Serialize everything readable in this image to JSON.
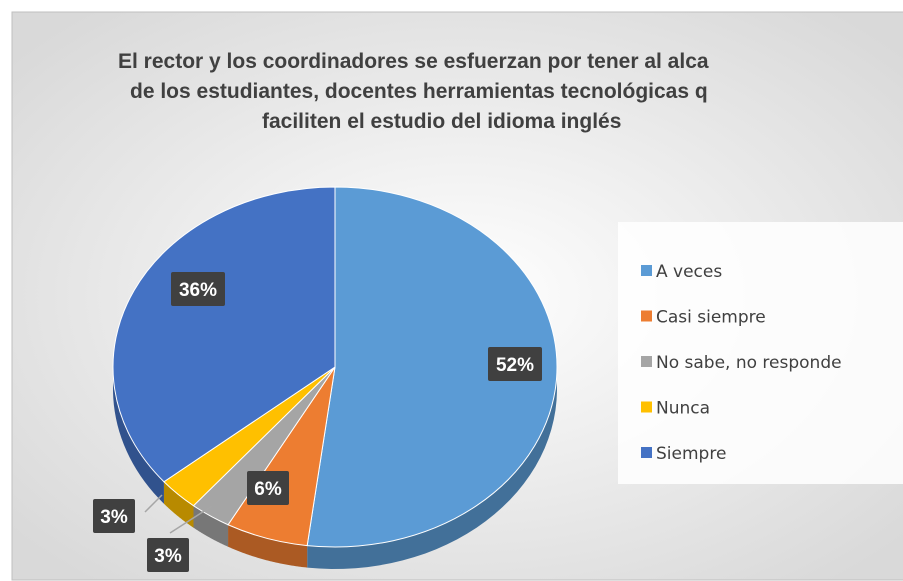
{
  "chart_data": {
    "type": "pie",
    "title": [
      "El rector y los coordinadores se esfuerzan por tener al alca",
      "de los estudiantes, docentes herramientas tecnológicas q",
      "faciliten el estudio del idioma inglés"
    ],
    "categories": [
      "A veces",
      "Casi siempre",
      "No sabe, no responde",
      "Nunca",
      "Siempre"
    ],
    "values": [
      52,
      6,
      3,
      3,
      36
    ],
    "value_labels": [
      "52%",
      "6%",
      "3%",
      "3%",
      "36%"
    ],
    "colors": [
      "#5b9bd5",
      "#ed7d31",
      "#a5a5a5",
      "#ffc000",
      "#4472c4"
    ],
    "legend": "right"
  }
}
